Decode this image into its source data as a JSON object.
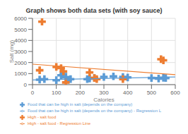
{
  "chart_data": {
    "type": "scatter",
    "title": "Graph shows both data sets (with soy sauce)",
    "x_label": "Calories",
    "y_label": "Salt (mg)",
    "xlim": [
      0,
      600
    ],
    "ylim": [
      0,
      6000
    ],
    "xticks": [
      0,
      100,
      200,
      300,
      400,
      500,
      600
    ],
    "yticks": [
      0,
      1000,
      2000,
      3000,
      4000,
      5000,
      6000
    ],
    "grid": true,
    "legend": "bottom",
    "series": [
      {
        "name": "Food that can be high in salt (depends on the company)",
        "type": "scatter",
        "marker": "plus",
        "color": "#5b9bd5",
        "x": [
          30,
          50,
          100,
          120,
          130,
          140,
          150,
          160,
          230,
          240,
          260,
          300,
          340,
          380,
          400,
          500,
          530,
          550,
          560
        ],
        "values": [
          450,
          500,
          400,
          850,
          950,
          650,
          450,
          500,
          500,
          550,
          600,
          700,
          750,
          700,
          650,
          600,
          550,
          620,
          600
        ],
        "x_error": [
          15,
          15,
          15,
          15,
          15,
          15,
          15,
          15,
          15,
          15,
          15,
          15,
          15,
          15,
          15,
          15,
          15,
          15,
          15
        ],
        "y_error": [
          60,
          60,
          60,
          60,
          60,
          60,
          60,
          60,
          60,
          60,
          60,
          60,
          60,
          60,
          60,
          60,
          60,
          60,
          60
        ]
      },
      {
        "name": "High - salt food",
        "type": "scatter",
        "marker": "plus",
        "color": "#ed7d31",
        "x": [
          30,
          40,
          100,
          120,
          130,
          140,
          240,
          260,
          270,
          380,
          540,
          550
        ],
        "values": [
          1300,
          5700,
          1600,
          1500,
          1200,
          200,
          1100,
          600,
          500,
          500,
          2300,
          2200
        ],
        "x_error": [
          15,
          15,
          15,
          15,
          15,
          15,
          15,
          15,
          15,
          15,
          15,
          15
        ],
        "y_error": [
          60,
          60,
          60,
          60,
          60,
          60,
          60,
          60,
          60,
          60,
          60,
          60
        ]
      },
      {
        "name": "Food that can be high in salt (depends on the company) - Regression L",
        "type": "line",
        "color": "#5b9bd5",
        "x": [
          0,
          600
        ],
        "values": [
          420,
          700
        ]
      },
      {
        "name": "High - salt food - Regression Line",
        "type": "line",
        "color": "#ed7d31",
        "x": [
          0,
          600
        ],
        "values": [
          1850,
          900
        ]
      }
    ]
  }
}
